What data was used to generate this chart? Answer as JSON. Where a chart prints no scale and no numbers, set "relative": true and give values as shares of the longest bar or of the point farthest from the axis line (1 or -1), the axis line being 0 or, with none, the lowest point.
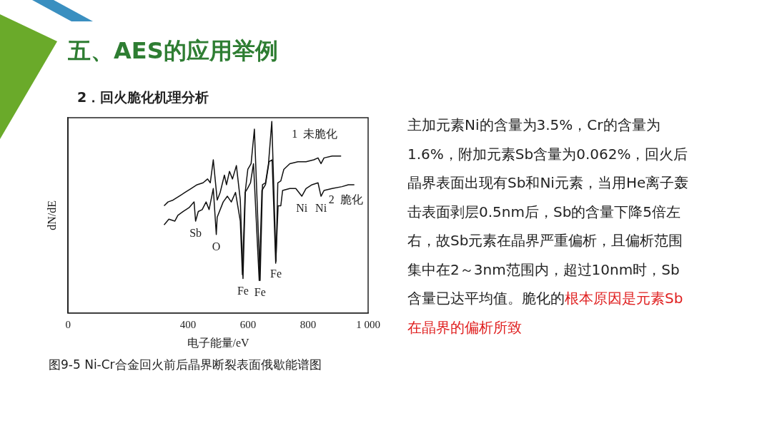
{
  "chart_data": {
    "type": "line",
    "relative": true,
    "title": "五、AES的应用举例",
    "subtitle": "2．回火脆化机理分析",
    "xlabel": "电子能量/eV",
    "ylabel": "dN/dE",
    "xlim": [
      0,
      1000
    ],
    "xticks": [
      0,
      400,
      600,
      800,
      {
        "value": 1000,
        "label": "1 000"
      }
    ],
    "grid": false,
    "legend": false,
    "marker": "none",
    "line_style": "solid",
    "series": [
      {
        "name": "1  未脆化",
        "color": "#111111",
        "x": [
          320,
          333,
          350,
          370,
          390,
          410,
          430,
          450,
          465,
          474,
          484,
          497,
          507,
          521,
          528,
          538,
          548,
          561,
          574,
          583,
          591,
          599,
          610,
          621,
          640,
          648,
          658,
          668,
          679,
          693,
          699,
          709,
          719,
          739,
          766,
          793,
          819,
          833,
          843,
          853,
          880,
          910
        ],
        "values": [
          0.56,
          0.58,
          0.59,
          0.61,
          0.63,
          0.65,
          0.67,
          0.68,
          0.7,
          0.68,
          0.8,
          0.59,
          0.63,
          0.72,
          0.67,
          0.74,
          0.7,
          0.77,
          0.59,
          0.18,
          0.64,
          0.75,
          0.78,
          0.96,
          0.17,
          0.67,
          0.68,
          0.78,
          1,
          0.27,
          0.68,
          0.69,
          0.75,
          0.78,
          0.79,
          0.79,
          0.8,
          0.81,
          0.78,
          0.81,
          0.82,
          0.82
        ]
      },
      {
        "name": "2  脆化",
        "color": "#111111",
        "x": [
          320,
          336,
          356,
          366,
          383,
          403,
          420,
          425,
          434,
          447,
          460,
          470,
          484,
          494,
          497,
          517,
          531,
          544,
          558,
          574,
          581,
          590,
          598,
          608,
          618,
          637,
          646,
          658,
          670,
          680,
          692,
          700,
          709,
          715,
          739,
          759,
          779,
          793,
          813,
          833,
          843,
          853,
          880,
          913,
          934,
          954
        ],
        "values": [
          0.46,
          0.49,
          0.48,
          0.51,
          0.53,
          0.55,
          0.58,
          0.48,
          0.53,
          0.54,
          0.58,
          0.54,
          0.65,
          0.41,
          0.5,
          0.58,
          0.61,
          0.58,
          0.63,
          0.48,
          0.2,
          0.63,
          0.65,
          0.68,
          0.78,
          0.17,
          0.64,
          0.67,
          0.79,
          0.8,
          0.26,
          0.56,
          0.56,
          0.64,
          0.65,
          0.65,
          0.61,
          0.65,
          0.67,
          0.68,
          0.61,
          0.64,
          0.65,
          0.66,
          0.67,
          0.67
        ]
      }
    ],
    "annotations": [
      {
        "text": "Sb",
        "x": 425,
        "y": 0.48
      },
      {
        "text": "O",
        "x": 494,
        "y": 0.41
      },
      {
        "text": "Fe",
        "x": 583,
        "y": 0.18
      },
      {
        "text": "Fe",
        "x": 640,
        "y": 0.17
      },
      {
        "text": "Fe",
        "x": 693,
        "y": 0.27
      },
      {
        "text": "Ni",
        "x": 779,
        "y": 0.61
      },
      {
        "text": "Ni",
        "x": 843,
        "y": 0.61
      },
      "图9-5 Ni-Cr合金回火前后晶界断裂表面俄歇能谱图",
      "主加元素Ni的含量为3.5%，Cr的含量为1.6%，附加元素Sb含量为0.062%，回火后晶界表面出现有Sb和Ni元素，当用He离子轰击表面剥层0.5nm后，Sb的含量下降5倍左右，故Sb元素在晶界严重偏析，且偏析范围集中在2～3nm范围内，超过10nm时，Sb含量已达平均值。脆化的",
      "根本原因是元素Sb在晶界的偏析所致"
    ]
  }
}
